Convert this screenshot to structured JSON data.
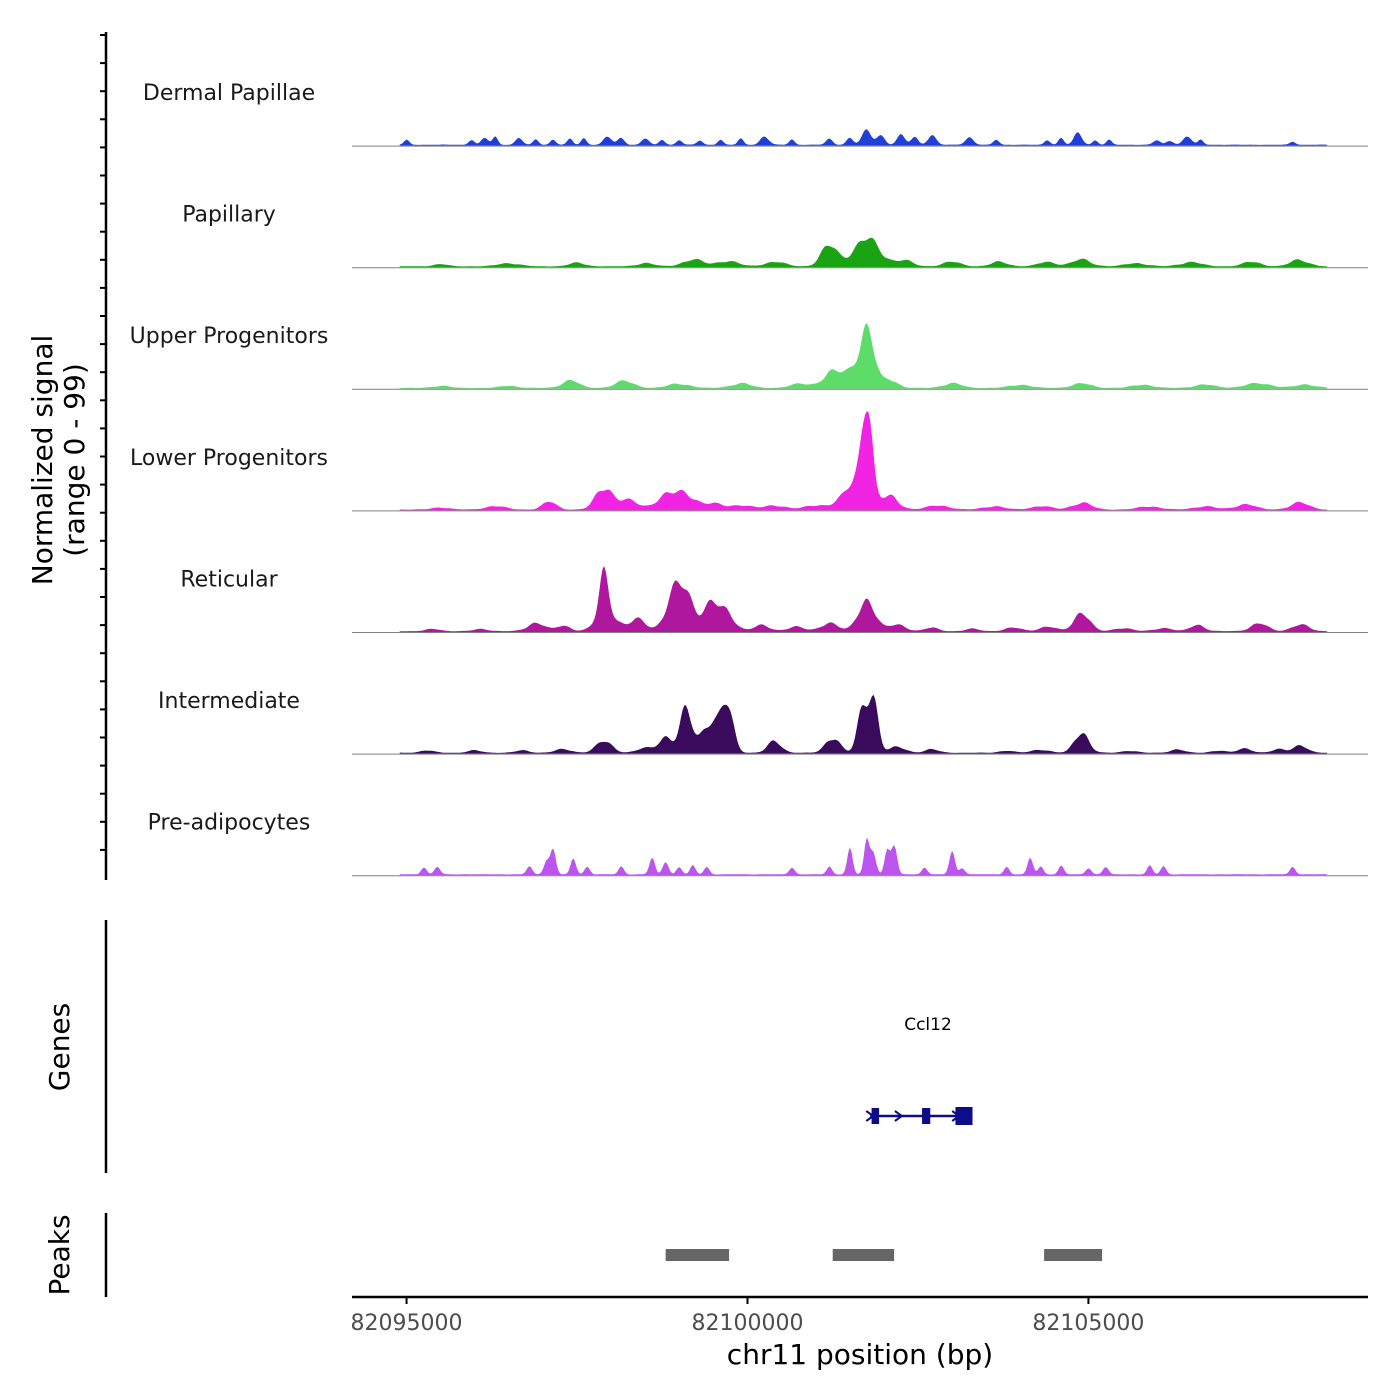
{
  "chart_data": {
    "type": "area",
    "title": "",
    "ylabel": "Normalized signal",
    "ylabel_range": "(range 0 - 99)",
    "ylim": [
      0,
      99
    ],
    "xlabel": "chr11 position (bp)",
    "xlim": [
      82094200,
      82109100
    ],
    "x_ticks": [
      82095000,
      82100000,
      82105000
    ],
    "x_tick_labels": [
      "82095000",
      "82100000",
      "82105000"
    ],
    "data_start": 82094900,
    "data_end": 82108500,
    "series": [
      {
        "name": "Dermal Papillae",
        "color": "#1f3fd6",
        "peaks": [
          [
            82095000,
            4,
            40
          ],
          [
            82095950,
            5,
            40
          ],
          [
            82096150,
            6,
            50
          ],
          [
            82096300,
            7,
            40
          ],
          [
            82096650,
            6,
            50
          ],
          [
            82096900,
            5,
            40
          ],
          [
            82097150,
            5,
            40
          ],
          [
            82097400,
            5,
            40
          ],
          [
            82097600,
            6,
            40
          ],
          [
            82097950,
            7,
            60
          ],
          [
            82098150,
            6,
            50
          ],
          [
            82098500,
            6,
            50
          ],
          [
            82098750,
            5,
            40
          ],
          [
            82099000,
            5,
            40
          ],
          [
            82099300,
            4,
            40
          ],
          [
            82099600,
            5,
            40
          ],
          [
            82099900,
            5,
            40
          ],
          [
            82100250,
            8,
            60
          ],
          [
            82100650,
            5,
            40
          ],
          [
            82101200,
            5,
            50
          ],
          [
            82101500,
            6,
            50
          ],
          [
            82101750,
            12,
            70
          ],
          [
            82101950,
            9,
            60
          ],
          [
            82102250,
            8,
            60
          ],
          [
            82102450,
            7,
            50
          ],
          [
            82102700,
            9,
            60
          ],
          [
            82103250,
            7,
            60
          ],
          [
            82103650,
            5,
            40
          ],
          [
            82104400,
            5,
            40
          ],
          [
            82104600,
            6,
            40
          ],
          [
            82104850,
            10,
            60
          ],
          [
            82105100,
            4,
            40
          ],
          [
            82105300,
            4,
            40
          ],
          [
            82106000,
            4,
            50
          ],
          [
            82106200,
            4,
            50
          ],
          [
            82106450,
            8,
            60
          ],
          [
            82106650,
            4,
            40
          ],
          [
            82108000,
            3,
            40
          ]
        ]
      },
      {
        "name": "Papillary",
        "color": "#1aa312",
        "peaks": [
          [
            82095500,
            2,
            100
          ],
          [
            82096500,
            3,
            150
          ],
          [
            82097500,
            3,
            120
          ],
          [
            82098500,
            3,
            120
          ],
          [
            82099200,
            6,
            150
          ],
          [
            82099700,
            5,
            150
          ],
          [
            82100400,
            4,
            150
          ],
          [
            82101200,
            18,
            120
          ],
          [
            82101750,
            24,
            200
          ],
          [
            82102300,
            5,
            120
          ],
          [
            82103000,
            4,
            130
          ],
          [
            82103700,
            4,
            120
          ],
          [
            82104400,
            4,
            130
          ],
          [
            82104900,
            6,
            140
          ],
          [
            82105700,
            3,
            150
          ],
          [
            82106500,
            4,
            150
          ],
          [
            82107400,
            4,
            130
          ],
          [
            82108100,
            6,
            130
          ]
        ]
      },
      {
        "name": "Upper Progenitors",
        "color": "#5ddc6a",
        "peaks": [
          [
            82095500,
            2,
            120
          ],
          [
            82096500,
            2,
            120
          ],
          [
            82097400,
            7,
            120
          ],
          [
            82098200,
            6,
            140
          ],
          [
            82099000,
            4,
            150
          ],
          [
            82099900,
            4,
            150
          ],
          [
            82100800,
            4,
            150
          ],
          [
            82101200,
            8,
            120
          ],
          [
            82101750,
            45,
            110
          ],
          [
            82101500,
            15,
            200
          ],
          [
            82102100,
            8,
            100
          ],
          [
            82103000,
            4,
            140
          ],
          [
            82104000,
            3,
            150
          ],
          [
            82104900,
            4,
            140
          ],
          [
            82105800,
            3,
            150
          ],
          [
            82106700,
            3,
            150
          ],
          [
            82107500,
            4,
            200
          ],
          [
            82108200,
            3,
            150
          ]
        ]
      },
      {
        "name": "Lower Progenitors",
        "color": "#f224e3",
        "peaks": [
          [
            82095500,
            2,
            120
          ],
          [
            82096300,
            3,
            150
          ],
          [
            82097100,
            7,
            100
          ],
          [
            82097900,
            21,
            120
          ],
          [
            82098250,
            8,
            150
          ],
          [
            82098800,
            12,
            150
          ],
          [
            82099100,
            14,
            140
          ],
          [
            82099500,
            5,
            150
          ],
          [
            82099900,
            4,
            150
          ],
          [
            82100400,
            4,
            150
          ],
          [
            82101000,
            4,
            150
          ],
          [
            82101400,
            6,
            150
          ],
          [
            82101750,
            85,
            70
          ],
          [
            82101650,
            30,
            150
          ],
          [
            82102100,
            12,
            120
          ],
          [
            82102800,
            4,
            150
          ],
          [
            82103600,
            3,
            150
          ],
          [
            82104300,
            3,
            150
          ],
          [
            82104900,
            6,
            140
          ],
          [
            82105900,
            3,
            150
          ],
          [
            82106700,
            3,
            150
          ],
          [
            82107300,
            5,
            140
          ],
          [
            82108100,
            6,
            140
          ]
        ]
      },
      {
        "name": "Reticular",
        "color": "#b0179f",
        "peaks": [
          [
            82095400,
            2,
            100
          ],
          [
            82096100,
            2,
            100
          ],
          [
            82096900,
            8,
            120
          ],
          [
            82097300,
            5,
            100
          ],
          [
            82097900,
            40,
            70
          ],
          [
            82097950,
            14,
            160
          ],
          [
            82098400,
            10,
            120
          ],
          [
            82098900,
            28,
            120
          ],
          [
            82099100,
            30,
            120
          ],
          [
            82099450,
            24,
            120
          ],
          [
            82099700,
            15,
            120
          ],
          [
            82100200,
            5,
            120
          ],
          [
            82100700,
            4,
            120
          ],
          [
            82101200,
            8,
            120
          ],
          [
            82101750,
            30,
            120
          ],
          [
            82102200,
            6,
            120
          ],
          [
            82102700,
            3,
            100
          ],
          [
            82103300,
            2,
            100
          ],
          [
            82103900,
            3,
            120
          ],
          [
            82104400,
            4,
            120
          ],
          [
            82104900,
            18,
            110
          ],
          [
            82105500,
            3,
            120
          ],
          [
            82106100,
            3,
            120
          ],
          [
            82106600,
            6,
            100
          ],
          [
            82107500,
            7,
            120
          ],
          [
            82108100,
            6,
            120
          ]
        ]
      },
      {
        "name": "Intermediate",
        "color": "#3a0a5c",
        "peaks": [
          [
            82095300,
            2,
            100
          ],
          [
            82096000,
            2,
            100
          ],
          [
            82096700,
            2,
            100
          ],
          [
            82097300,
            3,
            120
          ],
          [
            82097900,
            10,
            120
          ],
          [
            82098500,
            4,
            120
          ],
          [
            82098800,
            15,
            100
          ],
          [
            82099100,
            37,
            90
          ],
          [
            82099450,
            30,
            120
          ],
          [
            82099700,
            40,
            90
          ],
          [
            82100400,
            10,
            100
          ],
          [
            82101250,
            15,
            100
          ],
          [
            82101700,
            40,
            80
          ],
          [
            82101850,
            48,
            70
          ],
          [
            82102200,
            5,
            120
          ],
          [
            82102700,
            3,
            100
          ],
          [
            82103800,
            2,
            100
          ],
          [
            82104300,
            3,
            120
          ],
          [
            82104900,
            20,
            100
          ],
          [
            82105600,
            2,
            100
          ],
          [
            82106300,
            3,
            100
          ],
          [
            82106900,
            2,
            100
          ],
          [
            82107300,
            4,
            100
          ],
          [
            82107800,
            3,
            100
          ],
          [
            82108100,
            7,
            100
          ]
        ]
      },
      {
        "name": "Pre-adipocytes",
        "color": "#bb55ee",
        "peaks": [
          [
            82095250,
            7,
            40
          ],
          [
            82095450,
            7,
            40
          ],
          [
            82096800,
            7,
            40
          ],
          [
            82097050,
            14,
            40
          ],
          [
            82097150,
            22,
            40
          ],
          [
            82097450,
            14,
            40
          ],
          [
            82097650,
            7,
            40
          ],
          [
            82098150,
            7,
            40
          ],
          [
            82098600,
            14,
            40
          ],
          [
            82098800,
            14,
            40
          ],
          [
            82099000,
            7,
            40
          ],
          [
            82099200,
            7,
            40
          ],
          [
            82099400,
            7,
            40
          ],
          [
            82100650,
            7,
            40
          ],
          [
            82101200,
            7,
            40
          ],
          [
            82101500,
            22,
            40
          ],
          [
            82101750,
            28,
            40
          ],
          [
            82101850,
            22,
            40
          ],
          [
            82102050,
            22,
            40
          ],
          [
            82102150,
            28,
            40
          ],
          [
            82102600,
            7,
            40
          ],
          [
            82103000,
            20,
            40
          ],
          [
            82103150,
            7,
            40
          ],
          [
            82103800,
            7,
            40
          ],
          [
            82104150,
            14,
            40
          ],
          [
            82104300,
            7,
            40
          ],
          [
            82104600,
            7,
            40
          ],
          [
            82105000,
            7,
            40
          ],
          [
            82105250,
            7,
            40
          ],
          [
            82105900,
            7,
            40
          ],
          [
            82106100,
            7,
            40
          ],
          [
            82108000,
            7,
            40
          ]
        ]
      }
    ],
    "genes": [
      {
        "name": "Ccl12",
        "strand": "+",
        "start": 82101800,
        "end": 82103300,
        "exons": [
          [
            82101820,
            82101930
          ],
          [
            82102560,
            82102680
          ],
          [
            82103050,
            82103300
          ]
        ]
      }
    ],
    "genes_label": "Genes",
    "peaks_label": "Peaks",
    "peak_regions": [
      [
        82098800,
        82099730
      ],
      [
        82101250,
        82102150
      ],
      [
        82104350,
        82105200
      ]
    ]
  }
}
